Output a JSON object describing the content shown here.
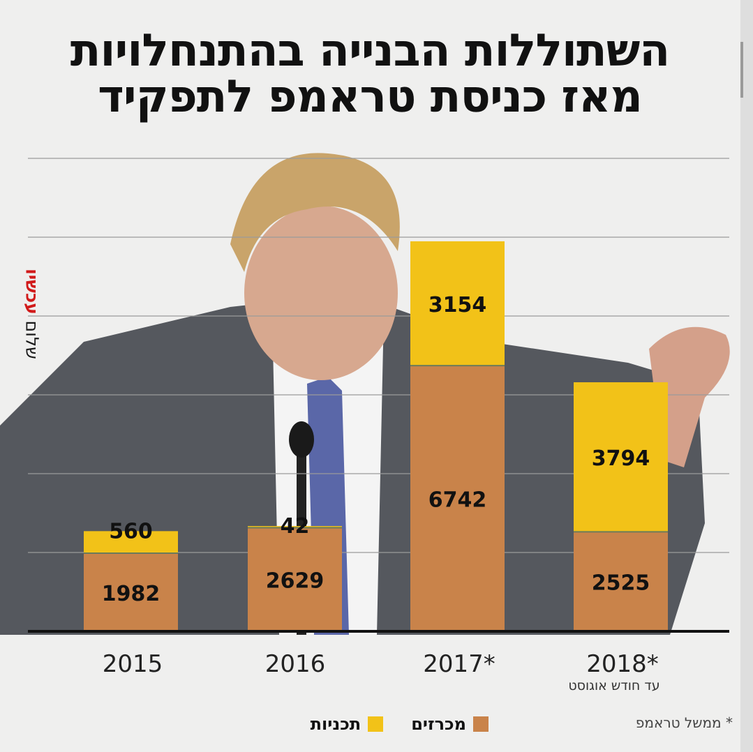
{
  "title_lines": [
    "השתוללות הבנייה בהתנחלויות",
    "מאז כניסת טראמפ לתפקיד"
  ],
  "brand": {
    "word1": "שלום",
    "word2": "עכשיו"
  },
  "footnote": "* ממשל טראמפ",
  "year_sub_note": "עד חודש אוגוסט",
  "colors": {
    "plans": "#f2c218",
    "tenders": "#c9834a",
    "axis": "#111111",
    "grid": "#9a9a9a"
  },
  "chart_data": {
    "type": "bar",
    "stacked": true,
    "title": "השתוללות הבנייה בהתנחלויות מאז כניסת טראמפ לתפקיד",
    "categories": [
      "2015",
      "2016",
      "2017*",
      "2018*"
    ],
    "series": [
      {
        "name": "מכרזים",
        "values": [
          1982,
          2629,
          6742,
          2525
        ]
      },
      {
        "name": "תכניות",
        "values": [
          560,
          42,
          3154,
          3794
        ]
      }
    ],
    "ylim": [
      0,
      12000
    ],
    "grid": true,
    "legend": "bottom"
  }
}
